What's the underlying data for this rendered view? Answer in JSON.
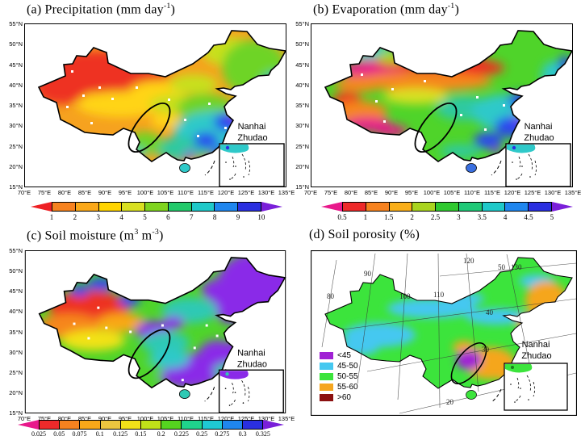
{
  "figure": {
    "panels": [
      {
        "id": "a",
        "title_parts": [
          {
            "t": "(a) Precipitation (mm day"
          },
          {
            "t": "-1",
            "sup": true
          },
          {
            "t": ")"
          }
        ],
        "y_ticks": [
          "55°N",
          "50°N",
          "45°N",
          "40°N",
          "35°N",
          "30°N",
          "25°N",
          "20°N",
          "15°N"
        ],
        "x_ticks": [
          "70°E",
          "75°E",
          "80°E",
          "85°E",
          "90°E",
          "95°E",
          "100°E",
          "105°E",
          "110°E",
          "115°E",
          "120°E",
          "125°E",
          "130°E",
          "135°E"
        ],
        "colorbar": {
          "tick_labels": [
            "1",
            "2",
            "3",
            "4",
            "5",
            "6",
            "7",
            "8",
            "9",
            "10"
          ],
          "segment_colors": [
            "#f6821f",
            "#faa819",
            "#ffd400",
            "#d9e021",
            "#7fd41f",
            "#22c96a",
            "#1fc9c9",
            "#1f86ee",
            "#2a2fe0"
          ],
          "under_arrow_color": "#ee2024",
          "over_arrow_color": "#7a1fd9"
        },
        "inset": {
          "label_line1": "Nanhai",
          "label_line2": "Zhudao"
        }
      },
      {
        "id": "b",
        "title_parts": [
          {
            "t": "(b) Evaporation (mm day"
          },
          {
            "t": "-1",
            "sup": true
          },
          {
            "t": ")"
          }
        ],
        "y_ticks": [
          "55°N",
          "50°N",
          "45°N",
          "40°N",
          "35°N",
          "30°N",
          "25°N",
          "20°N",
          "15°N"
        ],
        "x_ticks": [
          "70°E",
          "75°E",
          "80°E",
          "85°E",
          "90°E",
          "95°E",
          "100°E",
          "105°E",
          "110°E",
          "115°E",
          "120°E",
          "125°E",
          "130°E",
          "135°E"
        ],
        "colorbar": {
          "tick_labels": [
            "0.5",
            "1",
            "1.5",
            "2",
            "2.5",
            "3",
            "3.5",
            "4",
            "4.5",
            "5"
          ],
          "segment_colors": [
            "#ee2a2a",
            "#f6821f",
            "#f9ae19",
            "#a9d41f",
            "#2fc92f",
            "#1fc977",
            "#1fc9c9",
            "#1f86ee",
            "#2a2fe0"
          ],
          "under_arrow_color": "#e8198b",
          "over_arrow_color": "#7a1fd9"
        },
        "inset": {
          "label_line1": "Nanhai",
          "label_line2": "Zhudao"
        }
      },
      {
        "id": "c",
        "title_parts": [
          {
            "t": "(c) Soil moisture (m"
          },
          {
            "t": "3",
            "sup": true
          },
          {
            "t": " m"
          },
          {
            "t": "-3",
            "sup": true
          },
          {
            "t": ")"
          }
        ],
        "y_ticks": [
          "55°N",
          "50°N",
          "45°N",
          "40°N",
          "35°N",
          "30°N",
          "25°N",
          "20°N",
          "15°N"
        ],
        "x_ticks": [
          "70°E",
          "75°E",
          "80°E",
          "85°E",
          "90°E",
          "95°E",
          "100°E",
          "105°E",
          "110°E",
          "115°E",
          "120°E",
          "125°E",
          "130°E",
          "135°E"
        ],
        "colorbar": {
          "tick_labels": [
            "0.025",
            "0.05",
            "0.075",
            "0.1",
            "0.125",
            "0.15",
            "0.2",
            "0.225",
            "0.25",
            "0.275",
            "0.3",
            "0.325"
          ],
          "segment_colors": [
            "#ee2a2a",
            "#f6821f",
            "#f9a819",
            "#ecc53f",
            "#f2e219",
            "#c0e219",
            "#55d41f",
            "#1fd48c",
            "#1fc9d4",
            "#1f86ee",
            "#2a2fe0"
          ],
          "under_arrow_color": "#e8198b",
          "over_arrow_color": "#7a1fd9"
        },
        "inset": {
          "label_line1": "Nanhai",
          "label_line2": "Zhudao"
        }
      },
      {
        "id": "d",
        "title_parts": [
          {
            "t": "(d) Soil porosity (%)"
          }
        ],
        "legend": [
          {
            "color": "#a021d4",
            "label": "<45"
          },
          {
            "color": "#45c8f0",
            "label": "45-50"
          },
          {
            "color": "#3ce43c",
            "label": "50-55"
          },
          {
            "color": "#f5a61f",
            "label": "55-60"
          },
          {
            "color": "#8b1010",
            "label": ">60"
          }
        ],
        "graticule_labels": [
          "80",
          "90",
          "100",
          "110",
          "120",
          "50",
          "130",
          "40",
          "30",
          "20"
        ],
        "inset": {
          "label_line1": "Nanhai",
          "label_line2": "Zhudao"
        }
      }
    ]
  }
}
